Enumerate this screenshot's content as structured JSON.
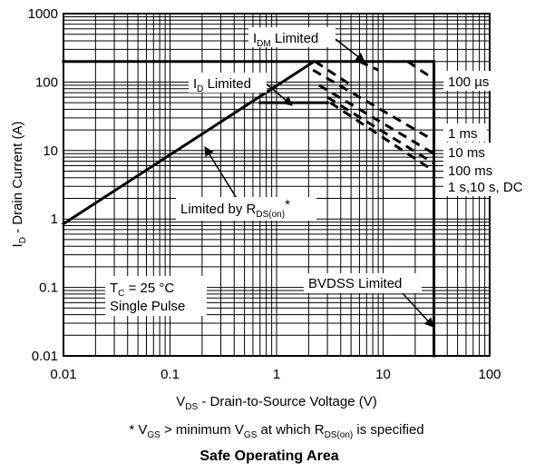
{
  "chart_data": {
    "type": "line",
    "title": "Safe Operating Area",
    "footnote": {
      "prefix": "* V",
      "sub1": "GS",
      "mid": " > minimum V",
      "sub2": "GS",
      "mid2": " at which R",
      "sub3": "DS(on)",
      "suffix": " is specified"
    },
    "xlabel": {
      "main": "V",
      "sub": "DS",
      "rest": " - Drain-to-Source Voltage (V)"
    },
    "ylabel": {
      "main": "I",
      "sub": "D",
      "rest": " - Drain Current (A)"
    },
    "x_scale": "log",
    "y_scale": "log",
    "xlim": [
      0.01,
      100
    ],
    "ylim": [
      0.01,
      1000
    ],
    "x_ticks": [
      "0.01",
      "0.1",
      "1",
      "10",
      "100"
    ],
    "y_ticks": [
      "0.01",
      "0.1",
      "1",
      "10",
      "100",
      "1000"
    ],
    "grid": true,
    "solid_boundary": {
      "rds_on_line": [
        [
          0.01,
          0.85
        ],
        [
          2.25,
          200
        ]
      ],
      "idm_limit": [
        [
          0.01,
          200
        ],
        [
          30,
          200
        ]
      ],
      "bvdss_limit": [
        [
          30,
          200
        ],
        [
          30,
          0.01
        ]
      ],
      "id_limit": [
        [
          0.7,
          50
        ],
        [
          3,
          50
        ]
      ]
    },
    "series": [
      {
        "name": "100 µs",
        "values": [
          [
            2.3,
            200
          ],
          [
            5,
            90
          ]
        ]
      },
      {
        "name": "100 µs",
        "values": [
          [
            6,
            200
          ],
          [
            9,
            150
          ]
        ]
      },
      {
        "name": "100 µs",
        "values": [
          [
            17,
            200
          ],
          [
            30,
            110
          ]
        ]
      },
      {
        "name": "1 ms",
        "values": [
          [
            2.2,
            150
          ],
          [
            30,
            14
          ]
        ]
      },
      {
        "name": "10 ms",
        "values": [
          [
            2.5,
            90
          ],
          [
            30,
            9
          ]
        ]
      },
      {
        "name": "100 ms",
        "values": [
          [
            3,
            60
          ],
          [
            30,
            6.5
          ]
        ]
      },
      {
        "name": "1 s,10 s, DC",
        "values": [
          [
            3.2,
            50
          ],
          [
            30,
            5
          ]
        ]
      }
    ],
    "annotations": [
      {
        "main": "I",
        "sub": "DM",
        "rest": " Limited"
      },
      {
        "main": "I",
        "sub": "D",
        "rest": " Limited"
      },
      {
        "main": "Limited by R",
        "sub": "DS(on)",
        "rest": "*"
      },
      {
        "main": "BVDSS Limited",
        "sub": "",
        "rest": ""
      }
    ],
    "conditions": {
      "line1_main": "T",
      "line1_sub": "C",
      "line1_rest": " = 25 °C",
      "line2": "Single Pulse"
    },
    "curve_labels": [
      "100 µs",
      "1 ms",
      "10 ms",
      "100 ms",
      "1 s,10 s, DC"
    ]
  }
}
